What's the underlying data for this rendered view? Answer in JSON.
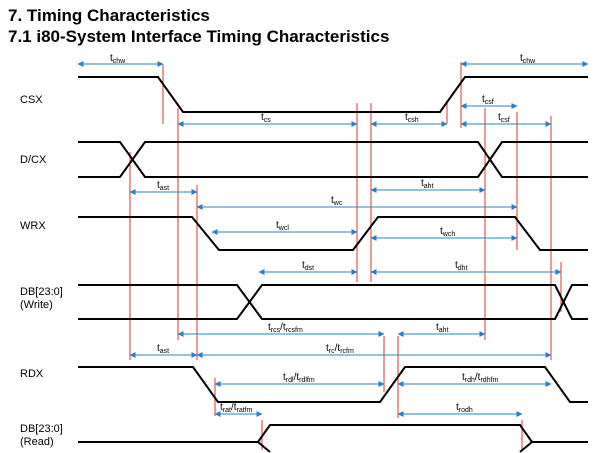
{
  "headings": {
    "section": "7. Timing Characteristics",
    "subsection": "7.1 i80-System Interface Timing Characteristics"
  },
  "signals": {
    "csx": "CSX",
    "dcx": "D/CX",
    "wrx": "WRX",
    "db_write": [
      "DB[23:0]",
      "(Write)"
    ],
    "rdx": "RDX",
    "db_read": [
      "DB[23:0]",
      "(Read)"
    ]
  },
  "timings": {
    "tchw_left": {
      "main": "t",
      "sub": "chw"
    },
    "tchw_right": {
      "main": "t",
      "sub": "chw"
    },
    "tcs": {
      "main": "t",
      "sub": "cs"
    },
    "tcsh": {
      "main": "t",
      "sub": "csh"
    },
    "tcsf_top": {
      "main": "t",
      "sub": "csf"
    },
    "tcsf_bottom": {
      "main": "t",
      "sub": "csf"
    },
    "tast_write": {
      "main": "t",
      "sub": "ast"
    },
    "taht_write": {
      "main": "t",
      "sub": "aht"
    },
    "twc": {
      "main": "t",
      "sub": "wc"
    },
    "twcl": {
      "main": "t",
      "sub": "wcl"
    },
    "twch": {
      "main": "t",
      "sub": "wch"
    },
    "tdst": {
      "main": "t",
      "sub": "dst"
    },
    "tdht": {
      "main": "t",
      "sub": "dht"
    },
    "trcs": {
      "parts": [
        [
          "t",
          "rcs"
        ],
        [
          "/t",
          "rcsfm"
        ]
      ]
    },
    "taht_read": {
      "main": "t",
      "sub": "aht"
    },
    "tast_read": {
      "main": "t",
      "sub": "ast"
    },
    "trc": {
      "parts": [
        [
          "t",
          "rc"
        ],
        [
          "/t",
          "rcfm"
        ]
      ]
    },
    "trdl": {
      "parts": [
        [
          "t",
          "rdl"
        ],
        [
          "/t",
          "rdlfm"
        ]
      ]
    },
    "trdh": {
      "parts": [
        [
          "t",
          "rdh"
        ],
        [
          "/t",
          "rdhfm"
        ]
      ]
    },
    "trat": {
      "parts": [
        [
          "t",
          "rat"
        ],
        [
          "/t",
          "ratfm"
        ]
      ]
    },
    "trodh": {
      "main": "t",
      "sub": "rodh"
    }
  },
  "colors": {
    "waveform": "#000000",
    "reference_line": "#e0362e",
    "measurement_arrow": "#2a80c8"
  }
}
